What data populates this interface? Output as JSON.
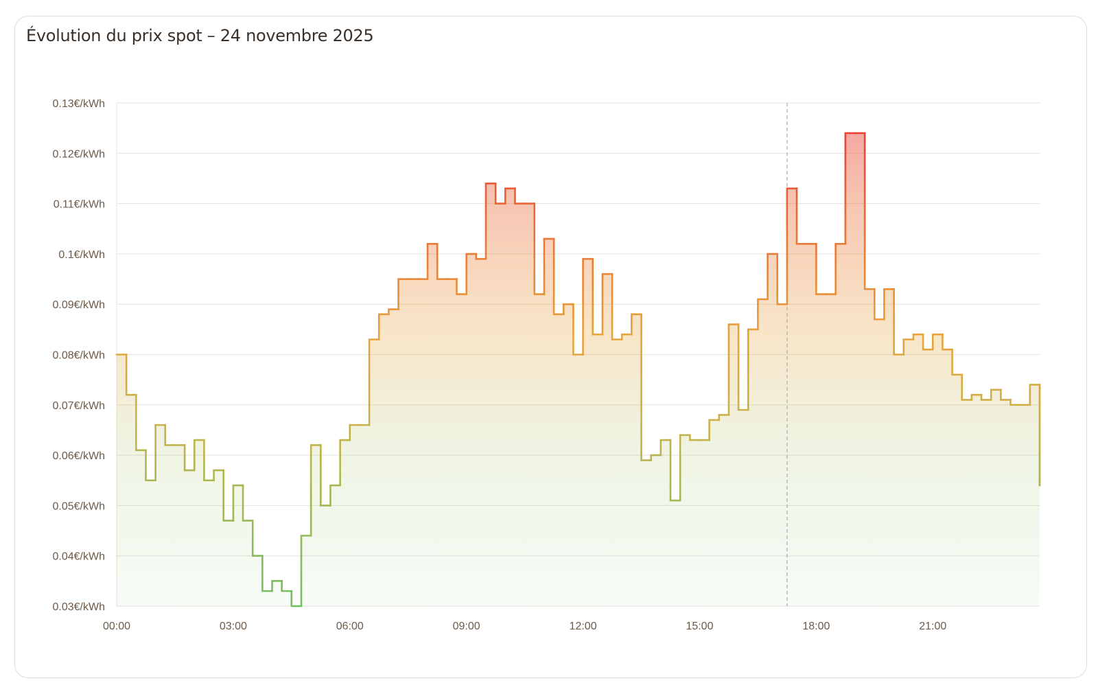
{
  "card": {
    "title": "Évolution du prix spot – 24 novembre 2025"
  },
  "chart_data": {
    "type": "line",
    "step": true,
    "title": "Évolution du prix spot – 24 novembre 2025",
    "xlabel": "",
    "ylabel": "",
    "unit": "€/kWh",
    "interval_minutes": 15,
    "x_start": "00:00",
    "ylim": [
      0.03,
      0.13
    ],
    "xlim_hours": [
      0,
      23.75
    ],
    "y_ticks": [
      "0.03€/kWh",
      "0.04€/kWh",
      "0.05€/kWh",
      "0.06€/kWh",
      "0.07€/kWh",
      "0.08€/kWh",
      "0.09€/kWh",
      "0.1€/kWh",
      "0.11€/kWh",
      "0.12€/kWh",
      "0.13€/kWh"
    ],
    "x_ticks": [
      "00:00",
      "03:00",
      "06:00",
      "09:00",
      "12:00",
      "15:00",
      "18:00",
      "21:00"
    ],
    "current_time": "17:15",
    "grid": true,
    "legend": "none",
    "colors": {
      "low": "#6cbf5f",
      "mid": "#e8a33a",
      "high": "#e8433a",
      "grid": "#e4e2da",
      "current_marker": "#b8b8b8"
    },
    "values": [
      0.08,
      0.072,
      0.061,
      0.055,
      0.066,
      0.062,
      0.062,
      0.057,
      0.063,
      0.055,
      0.057,
      0.047,
      0.054,
      0.047,
      0.04,
      0.033,
      0.035,
      0.033,
      0.03,
      0.044,
      0.062,
      0.05,
      0.054,
      0.063,
      0.066,
      0.066,
      0.083,
      0.088,
      0.089,
      0.095,
      0.095,
      0.095,
      0.102,
      0.095,
      0.095,
      0.092,
      0.1,
      0.099,
      0.114,
      0.11,
      0.113,
      0.11,
      0.11,
      0.092,
      0.103,
      0.088,
      0.09,
      0.08,
      0.099,
      0.084,
      0.096,
      0.083,
      0.084,
      0.088,
      0.059,
      0.06,
      0.063,
      0.051,
      0.064,
      0.063,
      0.063,
      0.067,
      0.068,
      0.086,
      0.069,
      0.085,
      0.091,
      0.1,
      0.09,
      0.113,
      0.102,
      0.102,
      0.092,
      0.092,
      0.102,
      0.124,
      0.124,
      0.093,
      0.087,
      0.093,
      0.08,
      0.083,
      0.084,
      0.081,
      0.084,
      0.081,
      0.076,
      0.071,
      0.072,
      0.071,
      0.073,
      0.071,
      0.07,
      0.07,
      0.074,
      0.054
    ]
  }
}
